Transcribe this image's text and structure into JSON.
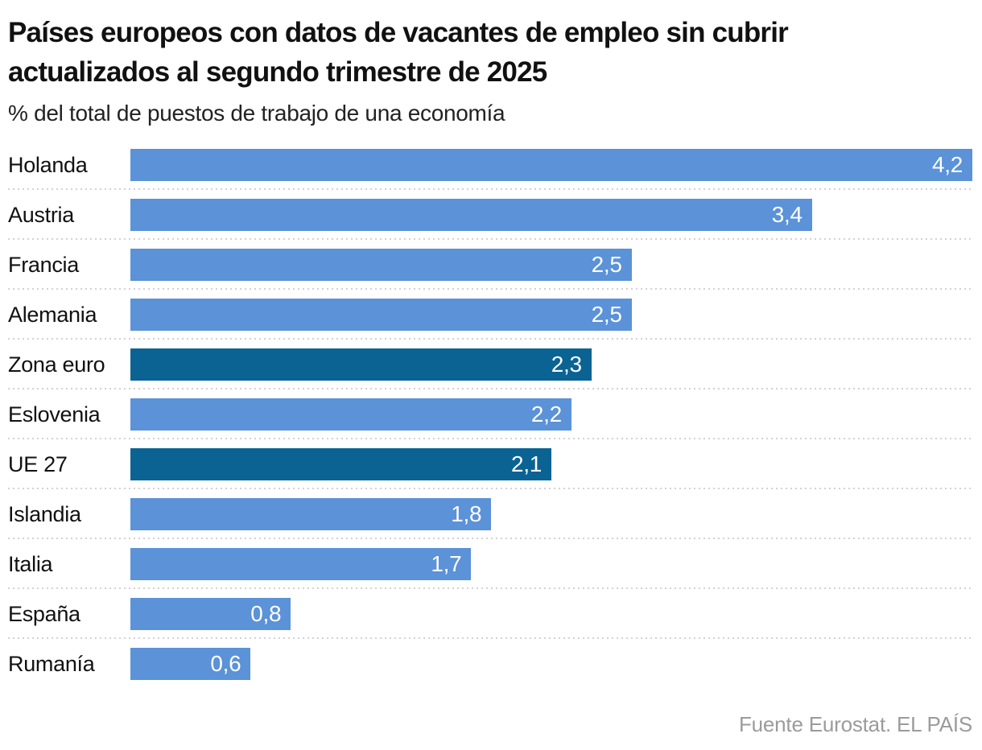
{
  "header": {
    "title_line1": "Países europeos con datos de vacantes de empleo sin cubrir",
    "title_line2": "actualizados al segundo trimestre de 2025",
    "subtitle": "% del total de puestos de trabajo de una economía"
  },
  "footer": {
    "source_label": "Fuente Eurostat",
    "brand": ". EL PAÍS"
  },
  "chart_data": {
    "type": "bar",
    "orientation": "horizontal",
    "title": "Países europeos con datos de vacantes de empleo sin cubrir actualizados al segundo trimestre de 2025",
    "subtitle_unit": "% del total de puestos de trabajo de una economía",
    "categories": [
      "Holanda",
      "Austria",
      "Francia",
      "Alemania",
      "Zona euro",
      "Eslovenia",
      "UE 27",
      "Islandia",
      "Italia",
      "España",
      "Rumanía"
    ],
    "values": [
      4.2,
      3.4,
      2.5,
      2.5,
      2.3,
      2.2,
      2.1,
      1.8,
      1.7,
      0.8,
      0.6
    ],
    "value_labels": [
      "4,2",
      "3,4",
      "2,5",
      "2,5",
      "2,3",
      "2,2",
      "2,1",
      "1,8",
      "1,7",
      "0,8",
      "0,6"
    ],
    "highlighted": [
      "Zona euro",
      "UE 27"
    ],
    "xlim": [
      0,
      4.2
    ],
    "grid": false,
    "legend": "none",
    "separator_style": "dotted",
    "colors": {
      "bar": "#5b92d8",
      "bar_highlight": "#0b6394",
      "value_text": "#ffffff",
      "separator": "#d2d2d2",
      "label_text": "#111111",
      "source_text": "#9b9b9b"
    }
  }
}
